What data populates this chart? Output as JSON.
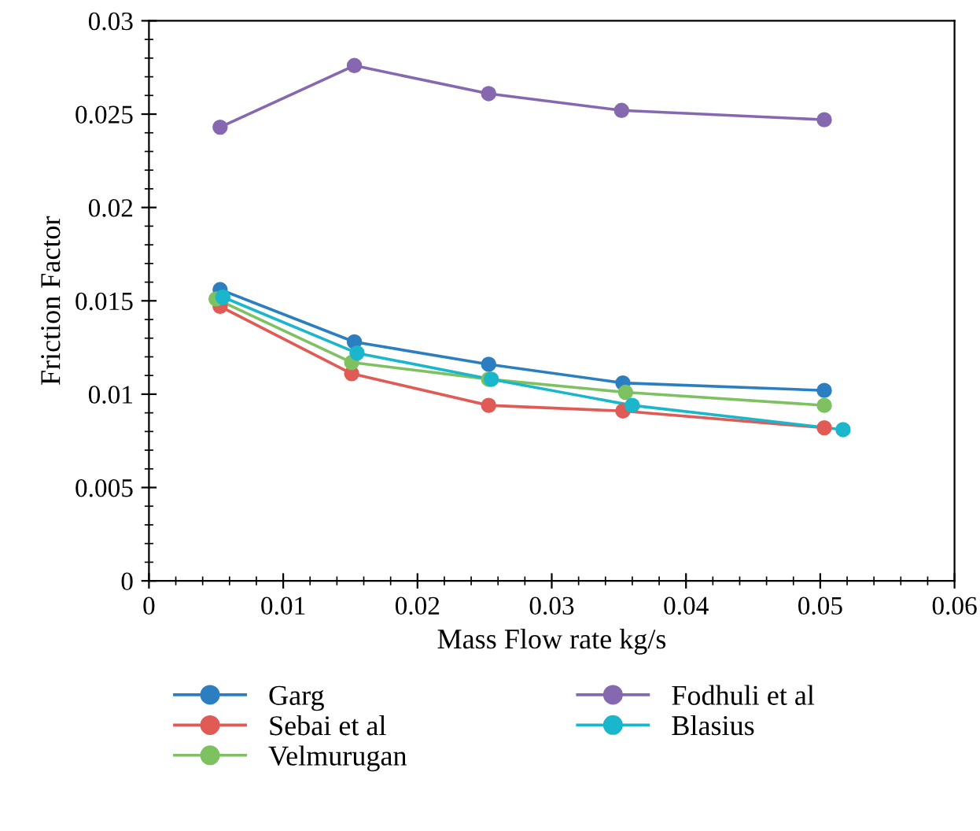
{
  "chart_data": {
    "type": "line",
    "xlabel": "Mass Flow rate kg/s",
    "ylabel": "Friction Factor",
    "xlim": [
      0,
      0.06
    ],
    "xticks": [
      0,
      0.01,
      0.02,
      0.03,
      0.04,
      0.05,
      0.06
    ],
    "ylim": [
      0,
      0.03
    ],
    "yticks": [
      0,
      0.005,
      0.01,
      0.015,
      0.02,
      0.025,
      0.03
    ],
    "grid": false,
    "legend": "bottom",
    "marker": "circle",
    "line_style": "solid",
    "series": [
      {
        "name": "Garg",
        "color": "#2b7fc0",
        "x": [
          0.0053,
          0.0153,
          0.0253,
          0.0353,
          0.0503
        ],
        "values": [
          0.0156,
          0.0128,
          0.0116,
          0.0106,
          0.0102
        ]
      },
      {
        "name": "Sebai et al",
        "color": "#e05a56",
        "x": [
          0.0053,
          0.0151,
          0.0253,
          0.0353,
          0.0503
        ],
        "values": [
          0.0147,
          0.0111,
          0.0094,
          0.0091,
          0.0082
        ]
      },
      {
        "name": "Velmurugan",
        "color": "#7dc160",
        "x": [
          0.005,
          0.0151,
          0.0253,
          0.0355,
          0.0503
        ],
        "values": [
          0.0151,
          0.0117,
          0.0108,
          0.0101,
          0.0094
        ]
      },
      {
        "name": "Fodhuli et al",
        "color": "#8568b0",
        "x": [
          0.0053,
          0.0153,
          0.0253,
          0.0352,
          0.0503
        ],
        "values": [
          0.0243,
          0.0276,
          0.0261,
          0.0252,
          0.0247
        ]
      },
      {
        "name": "Blasius",
        "color": "#1ab6cc",
        "x": [
          0.0055,
          0.0155,
          0.0255,
          0.036,
          0.0517
        ],
        "values": [
          0.0152,
          0.0122,
          0.0108,
          0.0094,
          0.0081
        ]
      }
    ]
  }
}
